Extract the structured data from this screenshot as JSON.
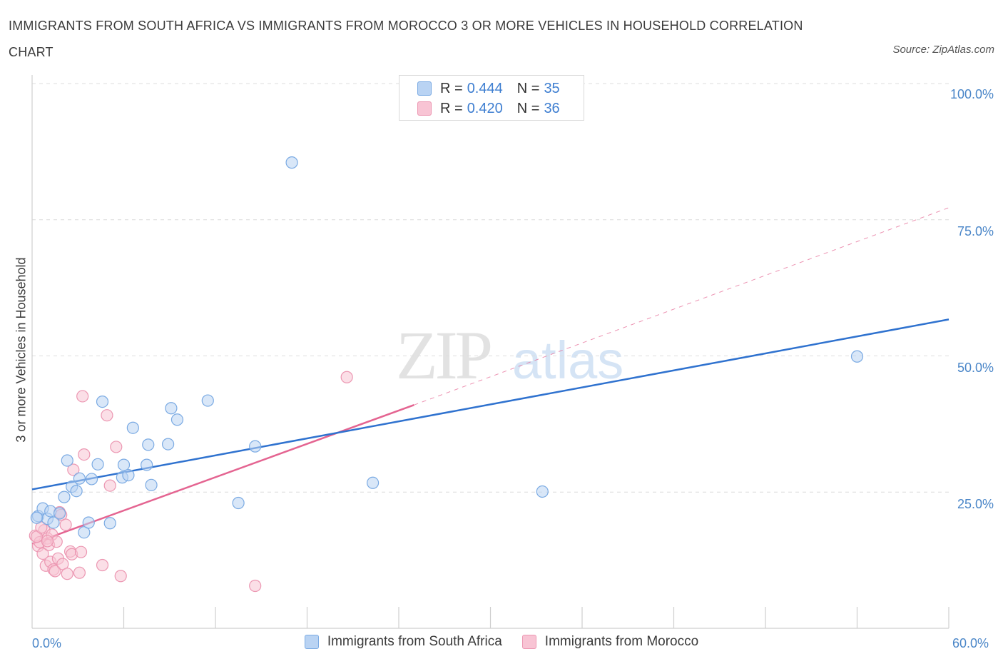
{
  "header": {
    "title": "IMMIGRANTS FROM SOUTH AFRICA VS IMMIGRANTS FROM MOROCCO 3 OR MORE VEHICLES IN HOUSEHOLD CORRELATION CHART",
    "source": "Source: ZipAtlas.com"
  },
  "watermark": {
    "zip": "ZIP",
    "atlas": "atlas"
  },
  "legend": {
    "rows": [
      {
        "r_label": "R = ",
        "r_value": "0.444",
        "n_label": "N = ",
        "n_value": "35"
      },
      {
        "r_label": "R = ",
        "r_value": "0.420",
        "n_label": "N = ",
        "n_value": "36"
      }
    ],
    "bottom": [
      "Immigrants from South Africa",
      "Immigrants from Morocco"
    ]
  },
  "colors": {
    "south_africa_fill": "#b9d3f3",
    "south_africa_stroke": "#7aaae3",
    "south_africa_line": "#2f72cf",
    "morocco_fill": "#f8c4d4",
    "morocco_stroke": "#ec97b2",
    "morocco_line": "#e46491",
    "tick_text": "#4a86c8",
    "grid": "#dcdcdc"
  },
  "chart_data": {
    "type": "scatter",
    "title": "IMMIGRANTS FROM SOUTH AFRICA VS IMMIGRANTS FROM MOROCCO 3 OR MORE VEHICLES IN HOUSEHOLD CORRELATION CHART",
    "xlabel": "",
    "ylabel": "3 or more Vehicles in Household",
    "xlim": [
      0,
      60
    ],
    "ylim": [
      0,
      100
    ],
    "x_tick_labels": [
      "0.0%",
      "60.0%"
    ],
    "y_ticks": [
      25,
      50,
      75,
      100
    ],
    "y_tick_labels": [
      "25.0%",
      "50.0%",
      "75.0%",
      "100.0%"
    ],
    "grid": true,
    "series": [
      {
        "name": "Immigrants from South Africa",
        "r": 0.444,
        "n": 35,
        "trend": {
          "x": [
            0,
            60
          ],
          "y": [
            25.5,
            56.7
          ],
          "dashed_extension": false
        },
        "points": [
          [
            0.4,
            20.6
          ],
          [
            0.7,
            22.0
          ],
          [
            1.0,
            20.1
          ],
          [
            1.2,
            21.5
          ],
          [
            1.4,
            19.4
          ],
          [
            1.8,
            21.1
          ],
          [
            2.1,
            24.1
          ],
          [
            2.3,
            30.8
          ],
          [
            2.6,
            26.0
          ],
          [
            2.9,
            25.2
          ],
          [
            3.1,
            27.5
          ],
          [
            3.4,
            17.6
          ],
          [
            3.7,
            19.4
          ],
          [
            3.9,
            27.4
          ],
          [
            4.3,
            30.1
          ],
          [
            4.6,
            41.6
          ],
          [
            5.1,
            19.3
          ],
          [
            5.9,
            27.7
          ],
          [
            6.0,
            30.0
          ],
          [
            6.3,
            28.1
          ],
          [
            6.6,
            36.8
          ],
          [
            7.5,
            30.0
          ],
          [
            7.6,
            33.7
          ],
          [
            7.8,
            26.3
          ],
          [
            8.9,
            33.8
          ],
          [
            9.1,
            40.4
          ],
          [
            9.5,
            38.3
          ],
          [
            11.5,
            41.8
          ],
          [
            13.5,
            23.0
          ],
          [
            14.6,
            33.4
          ],
          [
            17.0,
            85.5
          ],
          [
            22.3,
            26.7
          ],
          [
            33.4,
            25.1
          ],
          [
            54.0,
            49.9
          ],
          [
            0.3,
            20.3
          ]
        ]
      },
      {
        "name": "Immigrants from Morocco",
        "r": 0.42,
        "n": 36,
        "trend": {
          "x": [
            0,
            25
          ],
          "y": [
            15.5,
            41.0
          ],
          "dashed_to": [
            60,
            77.2
          ]
        },
        "points": [
          [
            0.2,
            17.0
          ],
          [
            0.4,
            15.1
          ],
          [
            0.5,
            15.8
          ],
          [
            0.7,
            13.7
          ],
          [
            0.8,
            18.0
          ],
          [
            0.9,
            11.5
          ],
          [
            1.0,
            16.5
          ],
          [
            1.1,
            15.3
          ],
          [
            1.2,
            12.2
          ],
          [
            1.3,
            17.2
          ],
          [
            1.4,
            10.8
          ],
          [
            1.5,
            10.5
          ],
          [
            1.6,
            15.9
          ],
          [
            1.7,
            12.8
          ],
          [
            1.8,
            21.3
          ],
          [
            1.9,
            20.8
          ],
          [
            2.0,
            11.8
          ],
          [
            2.2,
            19.0
          ],
          [
            2.3,
            10.0
          ],
          [
            2.5,
            14.1
          ],
          [
            2.6,
            13.6
          ],
          [
            2.7,
            29.1
          ],
          [
            3.1,
            10.2
          ],
          [
            3.2,
            14.0
          ],
          [
            3.3,
            42.6
          ],
          [
            3.4,
            31.9
          ],
          [
            4.6,
            11.6
          ],
          [
            4.9,
            39.1
          ],
          [
            5.1,
            26.2
          ],
          [
            5.5,
            33.3
          ],
          [
            5.8,
            9.6
          ],
          [
            14.6,
            7.8
          ],
          [
            20.6,
            46.1
          ],
          [
            0.3,
            16.8
          ],
          [
            0.6,
            18.5
          ],
          [
            1.0,
            16.0
          ]
        ]
      }
    ]
  }
}
